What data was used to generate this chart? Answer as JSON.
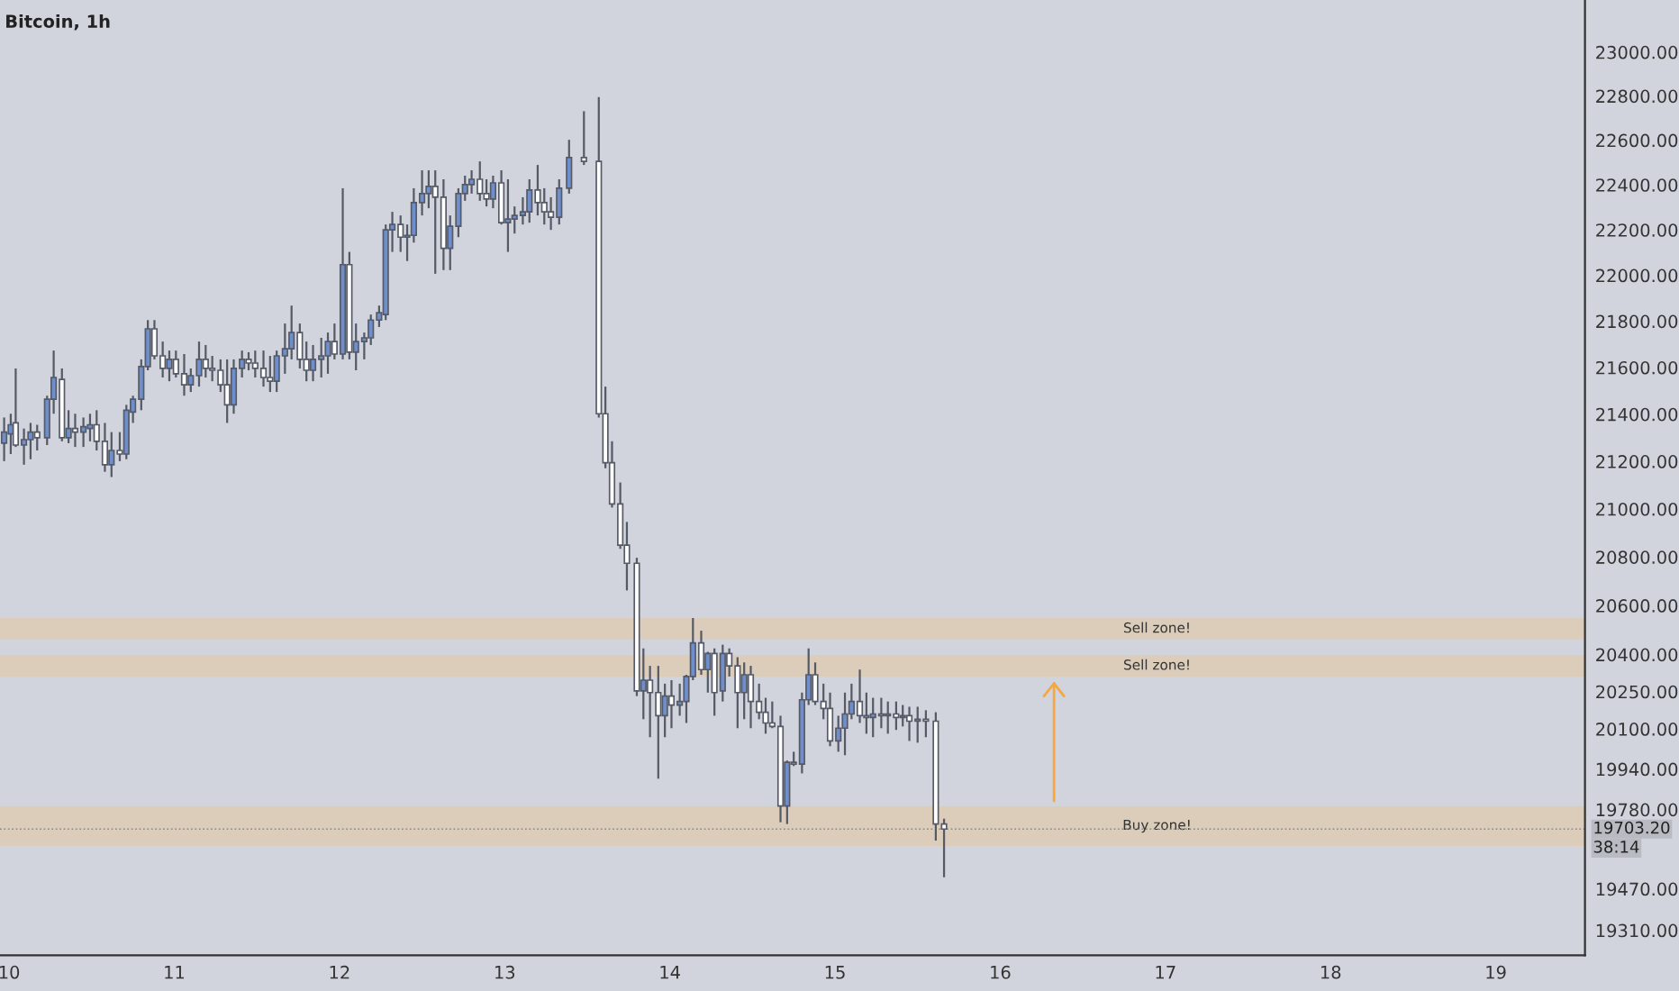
{
  "chart_data": {
    "type": "candlestick",
    "title": "Bitcoin, 1h",
    "x": [
      9.97,
      10.01,
      10.04,
      10.09,
      10.13,
      10.17,
      10.23,
      10.27,
      10.32,
      10.36,
      10.4,
      10.45,
      10.49,
      10.53,
      10.58,
      10.62,
      10.67,
      10.71,
      10.75,
      10.8,
      10.84,
      10.88,
      10.93,
      10.97,
      11.01,
      11.06,
      11.1,
      11.15,
      11.19,
      11.23,
      11.28,
      11.32,
      11.36,
      11.41,
      11.45,
      11.49,
      11.54,
      11.58,
      11.62,
      11.67,
      11.71,
      11.76,
      11.8,
      11.84,
      11.89,
      11.93,
      11.97,
      12.02,
      12.06,
      12.1,
      12.15,
      12.19,
      12.24,
      12.28,
      12.32,
      12.37,
      12.41,
      12.45,
      12.5,
      12.54,
      12.58,
      12.63,
      12.67,
      12.72,
      12.76,
      12.8,
      12.85,
      12.89,
      12.93,
      12.98,
      13.02,
      13.06,
      13.11,
      13.15,
      13.2,
      13.24,
      13.28,
      13.33,
      13.39,
      13.48,
      13.57,
      13.61,
      13.65,
      13.7,
      13.74,
      13.8,
      13.84,
      13.88,
      13.93,
      13.97,
      14.01,
      14.06,
      14.1,
      14.14,
      14.19,
      14.23,
      14.27,
      14.32,
      14.36,
      14.41,
      14.45,
      14.49,
      14.54,
      14.58,
      14.62,
      14.67,
      14.71,
      14.75,
      14.8,
      14.84,
      14.88,
      14.93,
      14.97,
      15.02,
      15.06,
      15.1,
      15.15,
      15.19,
      15.23,
      15.28,
      15.32,
      15.37,
      15.41,
      15.45,
      15.5,
      15.55,
      15.61,
      15.66
    ],
    "ohlc": [
      [
        21277,
        21386,
        21201,
        21324
      ],
      [
        21316,
        21402,
        21231,
        21355
      ],
      [
        21363,
        21596,
        21261,
        21269
      ],
      [
        21269,
        21339,
        21186,
        21292
      ],
      [
        21292,
        21363,
        21209,
        21324
      ],
      [
        21324,
        21355,
        21246,
        21300
      ],
      [
        21300,
        21479,
        21269,
        21464
      ],
      [
        21464,
        21673,
        21402,
        21557
      ],
      [
        21549,
        21596,
        21285,
        21300
      ],
      [
        21300,
        21417,
        21277,
        21339
      ],
      [
        21339,
        21402,
        21261,
        21324
      ],
      [
        21324,
        21386,
        21261,
        21347
      ],
      [
        21339,
        21402,
        21285,
        21355
      ],
      [
        21355,
        21417,
        21246,
        21285
      ],
      [
        21285,
        21363,
        21156,
        21186
      ],
      [
        21186,
        21324,
        21134,
        21246
      ],
      [
        21246,
        21324,
        21201,
        21231
      ],
      [
        21231,
        21440,
        21209,
        21417
      ],
      [
        21409,
        21479,
        21363,
        21464
      ],
      [
        21464,
        21635,
        21417,
        21604
      ],
      [
        21604,
        21805,
        21588,
        21767
      ],
      [
        21767,
        21805,
        21635,
        21650
      ],
      [
        21650,
        21712,
        21557,
        21596
      ],
      [
        21596,
        21673,
        21541,
        21635
      ],
      [
        21635,
        21673,
        21557,
        21573
      ],
      [
        21573,
        21658,
        21479,
        21526
      ],
      [
        21526,
        21596,
        21495,
        21565
      ],
      [
        21565,
        21712,
        21518,
        21635
      ],
      [
        21635,
        21697,
        21557,
        21596
      ],
      [
        21596,
        21650,
        21541,
        21588
      ],
      [
        21588,
        21635,
        21495,
        21526
      ],
      [
        21526,
        21635,
        21363,
        21440
      ],
      [
        21440,
        21635,
        21402,
        21596
      ],
      [
        21596,
        21673,
        21557,
        21635
      ],
      [
        21635,
        21666,
        21588,
        21619
      ],
      [
        21619,
        21673,
        21557,
        21596
      ],
      [
        21596,
        21673,
        21518,
        21557
      ],
      [
        21557,
        21650,
        21495,
        21541
      ],
      [
        21541,
        21673,
        21495,
        21650
      ],
      [
        21650,
        21790,
        21573,
        21681
      ],
      [
        21681,
        21868,
        21635,
        21751
      ],
      [
        21751,
        21790,
        21596,
        21635
      ],
      [
        21635,
        21712,
        21541,
        21588
      ],
      [
        21588,
        21697,
        21541,
        21635
      ],
      [
        21635,
        21728,
        21557,
        21650
      ],
      [
        21650,
        21751,
        21573,
        21712
      ],
      [
        21712,
        21790,
        21635,
        21658
      ],
      [
        21658,
        22385,
        21635,
        22047
      ],
      [
        22047,
        22103,
        21635,
        21666
      ],
      [
        21666,
        21790,
        21588,
        21712
      ],
      [
        21712,
        21751,
        21635,
        21728
      ],
      [
        21728,
        21829,
        21697,
        21805
      ],
      [
        21805,
        21868,
        21775,
        21837
      ],
      [
        21829,
        22224,
        21805,
        22200
      ],
      [
        22200,
        22280,
        22103,
        22224
      ],
      [
        22224,
        22264,
        22103,
        22168
      ],
      [
        22168,
        22224,
        22063,
        22176
      ],
      [
        22176,
        22385,
        22144,
        22321
      ],
      [
        22321,
        22465,
        22264,
        22361
      ],
      [
        22361,
        22465,
        22296,
        22393
      ],
      [
        22393,
        22465,
        22007,
        22345
      ],
      [
        22345,
        22425,
        22023,
        22119
      ],
      [
        22119,
        22264,
        22023,
        22216
      ],
      [
        22216,
        22385,
        22168,
        22361
      ],
      [
        22361,
        22441,
        22329,
        22401
      ],
      [
        22401,
        22465,
        22361,
        22425
      ],
      [
        22425,
        22505,
        22329,
        22361
      ],
      [
        22361,
        22425,
        22304,
        22337
      ],
      [
        22337,
        22441,
        22296,
        22409
      ],
      [
        22409,
        22465,
        22224,
        22232
      ],
      [
        22232,
        22425,
        22103,
        22248
      ],
      [
        22248,
        22304,
        22184,
        22264
      ],
      [
        22264,
        22345,
        22224,
        22280
      ],
      [
        22280,
        22425,
        22232,
        22377
      ],
      [
        22377,
        22489,
        22264,
        22321
      ],
      [
        22321,
        22385,
        22224,
        22280
      ],
      [
        22280,
        22345,
        22200,
        22256
      ],
      [
        22256,
        22425,
        22224,
        22385
      ],
      [
        22385,
        22602,
        22361,
        22522
      ],
      [
        22522,
        22731,
        22489,
        22505
      ],
      [
        22505,
        22795,
        21386,
        21402
      ],
      [
        21402,
        21518,
        21171,
        21194
      ],
      [
        21194,
        21285,
        21006,
        21021
      ],
      [
        21021,
        21111,
        20834,
        20849
      ],
      [
        20849,
        20946,
        20662,
        20774
      ],
      [
        20774,
        20797,
        20232,
        20253
      ],
      [
        20253,
        20425,
        20139,
        20296
      ],
      [
        20296,
        20354,
        20067,
        20246
      ],
      [
        20246,
        20354,
        19902,
        20153
      ],
      [
        20153,
        20282,
        20067,
        20232
      ],
      [
        20232,
        20296,
        20103,
        20196
      ],
      [
        20196,
        20282,
        20153,
        20210
      ],
      [
        20210,
        20318,
        20124,
        20311
      ],
      [
        20311,
        20549,
        20296,
        20447
      ],
      [
        20447,
        20497,
        20318,
        20339
      ],
      [
        20339,
        20411,
        20246,
        20404
      ],
      [
        20404,
        20425,
        20153,
        20246
      ],
      [
        20253,
        20440,
        20210,
        20404
      ],
      [
        20404,
        20425,
        20311,
        20354
      ],
      [
        20354,
        20389,
        20103,
        20246
      ],
      [
        20246,
        20368,
        20139,
        20318
      ],
      [
        20318,
        20354,
        20103,
        20210
      ],
      [
        20210,
        20282,
        20139,
        20167
      ],
      [
        20167,
        20225,
        20081,
        20124
      ],
      [
        20124,
        20210,
        20103,
        20110
      ],
      [
        20110,
        20153,
        19730,
        19794
      ],
      [
        19794,
        19974,
        19723,
        19967
      ],
      [
        19967,
        20009,
        19952,
        19960
      ],
      [
        19960,
        20246,
        19923,
        20217
      ],
      [
        20217,
        20425,
        20196,
        20318
      ],
      [
        20318,
        20368,
        20196,
        20210
      ],
      [
        20210,
        20282,
        20139,
        20182
      ],
      [
        20182,
        20246,
        20031,
        20052
      ],
      [
        20052,
        20153,
        20009,
        20103
      ],
      [
        20103,
        20246,
        19995,
        20160
      ],
      [
        20160,
        20282,
        20139,
        20210
      ],
      [
        20210,
        20339,
        20124,
        20153
      ],
      [
        20153,
        20246,
        20081,
        20146
      ],
      [
        20146,
        20225,
        20067,
        20160
      ],
      [
        20160,
        20225,
        20103,
        20153
      ],
      [
        20153,
        20210,
        20081,
        20160
      ],
      [
        20160,
        20210,
        20096,
        20146
      ],
      [
        20146,
        20196,
        20110,
        20153
      ],
      [
        20153,
        20189,
        20052,
        20131
      ],
      [
        20131,
        20189,
        20045,
        20139
      ],
      [
        20139,
        20175,
        20067,
        20131
      ],
      [
        20131,
        20167,
        19658,
        19723
      ],
      [
        19723,
        19744,
        19515,
        19703.2
      ]
    ],
    "xlim": [
      9.945,
      19.54
    ],
    "xticks": [
      10,
      11,
      12,
      13,
      14,
      15,
      16,
      17,
      18,
      19
    ],
    "log": true,
    "ylim": [
      19214,
      23240
    ],
    "yticks": [
      {
        "value": 23000,
        "label": "23000.00"
      },
      {
        "value": 22800,
        "label": "22800.00"
      },
      {
        "value": 22600,
        "label": "22600.00"
      },
      {
        "value": 22400,
        "label": "22400.00"
      },
      {
        "value": 22200,
        "label": "22200.00"
      },
      {
        "value": 22000,
        "label": "22000.00"
      },
      {
        "value": 21800,
        "label": "21800.00"
      },
      {
        "value": 21600,
        "label": "21600.00"
      },
      {
        "value": 21400,
        "label": "21400.00"
      },
      {
        "value": 21200,
        "label": "21200.00"
      },
      {
        "value": 21000,
        "label": "21000.00"
      },
      {
        "value": 20800,
        "label": "20800.00"
      },
      {
        "value": 20600,
        "label": "20600.00"
      },
      {
        "value": 20400,
        "label": "20400.00"
      },
      {
        "value": 20250,
        "label": "20250.00"
      },
      {
        "value": 20100,
        "label": "20100.00"
      },
      {
        "value": 19940,
        "label": "19940.00"
      },
      {
        "value": 19780,
        "label": "19780.00"
      },
      {
        "value": 19470,
        "label": "19470.00"
      },
      {
        "value": 19310,
        "label": "19310.00"
      }
    ],
    "bands": [
      {
        "axis": "y",
        "from": 20461,
        "to": 20549,
        "label": "Sell zone!",
        "color": "#dccdbb"
      },
      {
        "axis": "y",
        "from": 20311,
        "to": 20397,
        "label": "Sell zone!",
        "color": "#dccdbb"
      },
      {
        "axis": "y",
        "from": 19637,
        "to": 19794,
        "label": "Buy zone!",
        "color": "#dccdbb"
      }
    ],
    "ref_lines": [
      {
        "axis": "y",
        "value": 19703.2,
        "label": "19703.20"
      }
    ],
    "annotations": [
      "38:14"
    ],
    "grid": false,
    "legend": false
  }
}
